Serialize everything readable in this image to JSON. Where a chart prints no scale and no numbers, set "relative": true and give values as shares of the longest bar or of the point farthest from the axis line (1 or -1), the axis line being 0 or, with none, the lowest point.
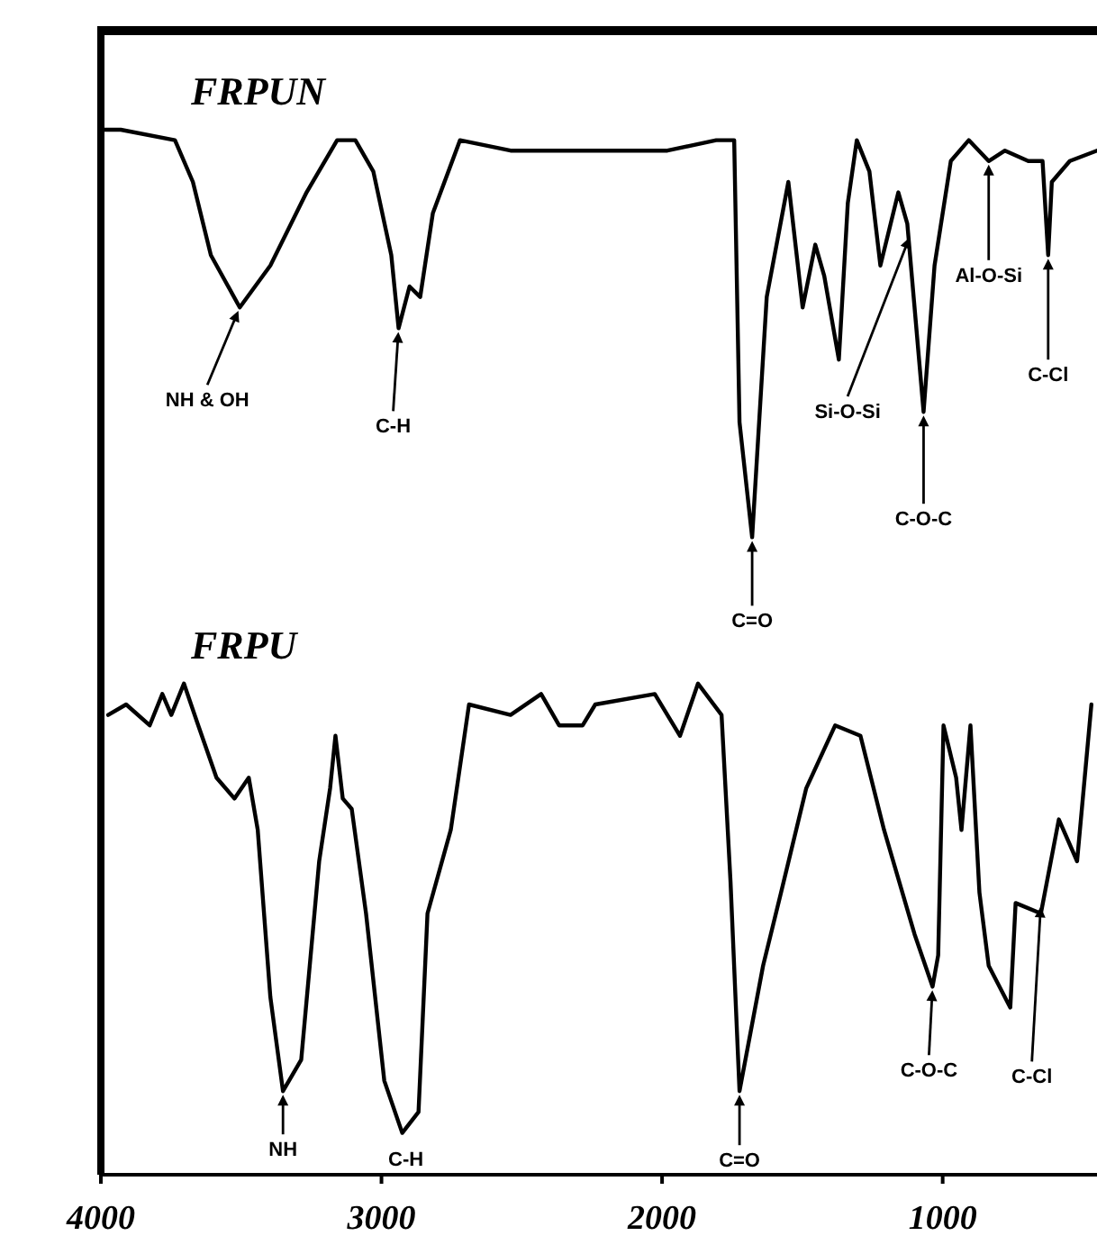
{
  "chart_data": {
    "type": "line",
    "relative": true,
    "xlim": [
      4000,
      450
    ],
    "xticks": [
      4000,
      3000,
      2000,
      1000
    ],
    "grid": false,
    "line_style": "solid",
    "series": [
      {
        "name": "FRPUN",
        "color": "#000000",
        "x": [
          4000,
          3929,
          3736,
          3672,
          3608,
          3505,
          3396,
          3267,
          3158,
          3093,
          3029,
          2965,
          2939,
          2900,
          2862,
          2817,
          2720,
          2540,
          2412,
          2257,
          2110,
          1981,
          1807,
          1743,
          1724,
          1679,
          1627,
          1550,
          1499,
          1454,
          1422,
          1370,
          1338,
          1306,
          1261,
          1222,
          1158,
          1126,
          1068,
          1029,
          971,
          907,
          836,
          778,
          695,
          644,
          624,
          611,
          547,
          450
        ],
        "values": [
          1.0,
          1.0,
          0.99,
          0.95,
          0.88,
          0.83,
          0.87,
          0.94,
          0.99,
          0.99,
          0.96,
          0.88,
          0.81,
          0.85,
          0.84,
          0.92,
          0.99,
          0.98,
          0.98,
          0.98,
          0.98,
          0.98,
          0.99,
          0.99,
          0.72,
          0.61,
          0.84,
          0.95,
          0.83,
          0.89,
          0.86,
          0.78,
          0.93,
          0.99,
          0.96,
          0.87,
          0.94,
          0.91,
          0.73,
          0.87,
          0.97,
          0.99,
          0.97,
          0.98,
          0.97,
          0.97,
          0.88,
          0.95,
          0.97,
          0.98
        ]
      },
      {
        "name": "FRPU",
        "color": "#000000",
        "x": [
          3974,
          3910,
          3826,
          3781,
          3749,
          3704,
          3653,
          3588,
          3524,
          3473,
          3441,
          3396,
          3351,
          3286,
          3222,
          3183,
          3164,
          3138,
          3106,
          3055,
          2990,
          2926,
          2868,
          2836,
          2753,
          2688,
          2540,
          2431,
          2367,
          2283,
          2238,
          2026,
          1936,
          1872,
          1788,
          1756,
          1724,
          1640,
          1576,
          1486,
          1383,
          1293,
          1209,
          1100,
          1036,
          1016,
          997,
          952,
          933,
          901,
          869,
          836,
          759,
          740,
          650,
          586,
          521,
          470
        ],
        "values": [
          0.44,
          0.45,
          0.43,
          0.46,
          0.44,
          0.47,
          0.43,
          0.38,
          0.36,
          0.38,
          0.33,
          0.17,
          0.08,
          0.11,
          0.3,
          0.37,
          0.42,
          0.36,
          0.35,
          0.25,
          0.09,
          0.04,
          0.06,
          0.25,
          0.33,
          0.45,
          0.44,
          0.46,
          0.43,
          0.43,
          0.45,
          0.46,
          0.42,
          0.47,
          0.44,
          0.28,
          0.08,
          0.2,
          0.27,
          0.37,
          0.43,
          0.42,
          0.33,
          0.23,
          0.18,
          0.21,
          0.43,
          0.38,
          0.33,
          0.43,
          0.27,
          0.2,
          0.16,
          0.26,
          0.25,
          0.34,
          0.3,
          0.45
        ]
      }
    ],
    "annotations": [
      {
        "text": "NH & OH",
        "x": 3505,
        "y": 0.83
      },
      {
        "text": "C-H",
        "x": 2939,
        "y": 0.81
      },
      {
        "text": "C=O",
        "x": 1679,
        "y": 0.61
      },
      {
        "text": "Si-O-Si",
        "x": 1114,
        "y": 0.9
      },
      {
        "text": "C-O-C",
        "x": 1068,
        "y": 0.73
      },
      {
        "text": "Al-O-Si",
        "x": 836,
        "y": 0.97
      },
      {
        "text": "C-Cl",
        "x": 624,
        "y": 0.88
      },
      {
        "text": "NH",
        "x": 3351,
        "y": 0.08
      },
      {
        "text": "C-H",
        "x": 2926,
        "y": 0.04
      },
      {
        "text": "C=O",
        "x": 1724,
        "y": 0.08
      },
      {
        "text": "C-O-C",
        "x": 1036,
        "y": 0.18
      },
      {
        "text": "C-Cl",
        "x": 650,
        "y": 0.26
      }
    ]
  }
}
